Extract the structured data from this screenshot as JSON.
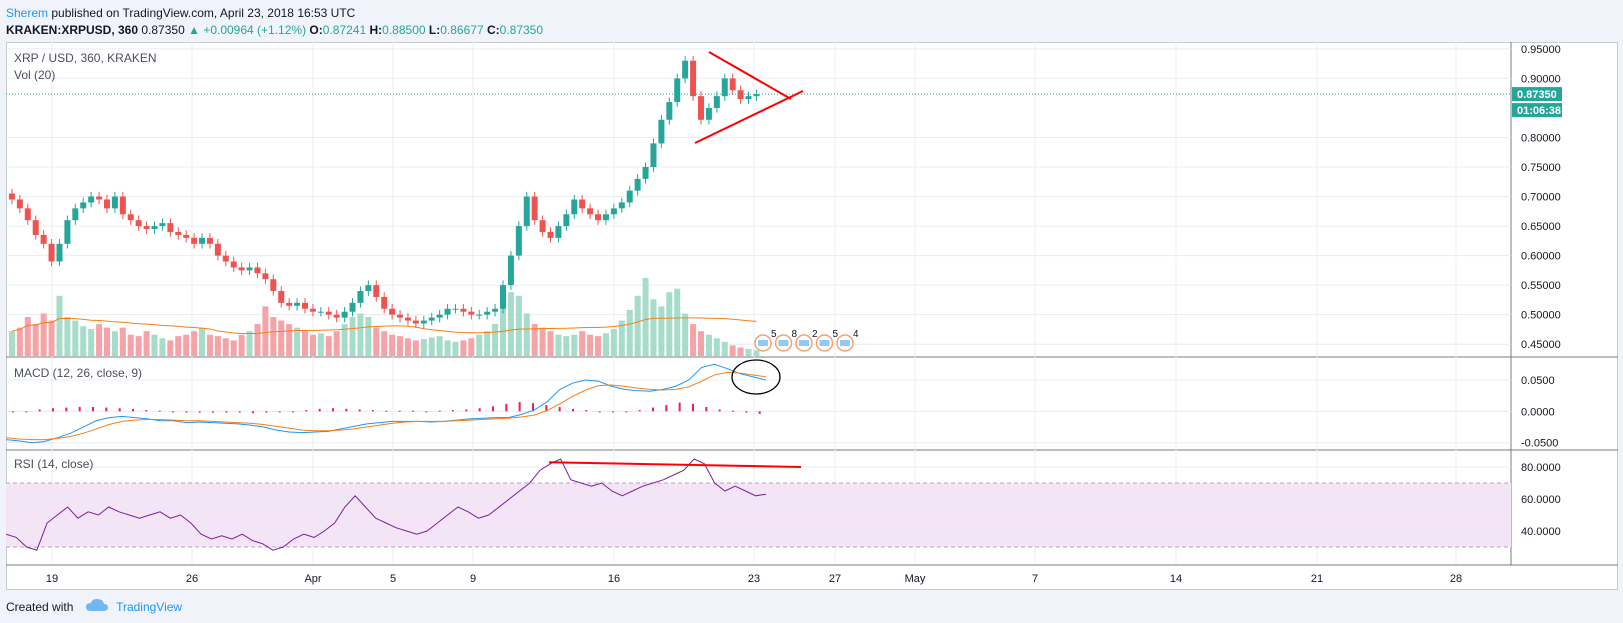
{
  "header": {
    "author": "Sherem",
    "text": "published on TradingView.com, April 23, 2018 16:53 UTC"
  },
  "ohlc": {
    "symbol": "KRAKEN:XRPUSD, 360",
    "last": "0.87350",
    "change": "▲ +0.00964 (+1.12%)",
    "o_label": "O:",
    "o": "0.87241",
    "h_label": "H:",
    "h": "0.88500",
    "l_label": "L:",
    "l": "0.86677",
    "c_label": "C:",
    "c": "0.87350"
  },
  "footer": {
    "created_with": "Created with",
    "brand": "TradingView"
  },
  "colors": {
    "up": "#26a69a",
    "down": "#ef5350",
    "up_vol": "#a6dcc9",
    "down_vol": "#f5a3a6",
    "vol_ma": "#f57f17",
    "macd": "#2196f3",
    "signal": "#f57f17",
    "hist": "#e91e63",
    "rsi": "#7b1fa2",
    "rsi_band": "#f3e5f5",
    "drawing_red": "#ff0000",
    "grid": "#e9ecf2",
    "price_line": "#26a69a"
  },
  "chart_data": [
    {
      "type": "candlestick",
      "title": "XRP / USD, 360, KRAKEN",
      "sub_label": "Vol (20)",
      "x_tick_labels": [
        "19",
        "26",
        "Apr",
        "5",
        "9",
        "16",
        "23",
        "27",
        "May",
        "7",
        "14",
        "21",
        "28"
      ],
      "y_tick_labels": [
        "0.95000",
        "0.90000",
        "0.80000",
        "0.75000",
        "0.70000",
        "0.65000",
        "0.60000",
        "0.55000",
        "0.50000",
        "0.45000"
      ],
      "ylim": [
        0.43,
        0.96
      ],
      "last_price_label": "0.87350",
      "countdown_label": "01:06:38",
      "closes": [
        0.695,
        0.68,
        0.66,
        0.635,
        0.62,
        0.59,
        0.62,
        0.66,
        0.68,
        0.69,
        0.7,
        0.695,
        0.68,
        0.7,
        0.67,
        0.66,
        0.65,
        0.645,
        0.65,
        0.655,
        0.64,
        0.635,
        0.63,
        0.62,
        0.63,
        0.62,
        0.6,
        0.59,
        0.58,
        0.575,
        0.58,
        0.57,
        0.56,
        0.54,
        0.52,
        0.515,
        0.52,
        0.51,
        0.505,
        0.505,
        0.5,
        0.495,
        0.505,
        0.52,
        0.54,
        0.55,
        0.53,
        0.51,
        0.5,
        0.495,
        0.49,
        0.485,
        0.49,
        0.495,
        0.5,
        0.51,
        0.51,
        0.505,
        0.5,
        0.5,
        0.505,
        0.51,
        0.55,
        0.6,
        0.65,
        0.7,
        0.66,
        0.64,
        0.63,
        0.65,
        0.67,
        0.695,
        0.68,
        0.67,
        0.66,
        0.67,
        0.68,
        0.69,
        0.71,
        0.73,
        0.75,
        0.79,
        0.83,
        0.86,
        0.9,
        0.93,
        0.87,
        0.83,
        0.85,
        0.87,
        0.9,
        0.88,
        0.865,
        0.87,
        0.8735
      ],
      "volumes": [
        35,
        40,
        55,
        45,
        60,
        50,
        85,
        55,
        50,
        42,
        38,
        45,
        40,
        35,
        40,
        30,
        28,
        35,
        30,
        25,
        22,
        28,
        30,
        35,
        40,
        30,
        28,
        25,
        22,
        30,
        35,
        45,
        70,
        55,
        50,
        45,
        40,
        35,
        30,
        32,
        28,
        35,
        45,
        55,
        60,
        55,
        40,
        35,
        30,
        28,
        25,
        22,
        24,
        26,
        28,
        22,
        20,
        22,
        25,
        30,
        35,
        45,
        70,
        90,
        85,
        60,
        45,
        40,
        35,
        30,
        28,
        30,
        35,
        30,
        28,
        32,
        38,
        50,
        65,
        85,
        110,
        80,
        70,
        90,
        95,
        60,
        45,
        35,
        30,
        25,
        20,
        15,
        12,
        10,
        8
      ],
      "event_badges": [
        "5",
        "8",
        "2",
        "5",
        "4"
      ]
    },
    {
      "type": "line",
      "title": "MACD (12, 26, close, 9)",
      "y_tick_labels": [
        "0.0500",
        "0.0000",
        "-0.0500"
      ],
      "ylim": [
        -0.06,
        0.085
      ],
      "series": [
        {
          "values": [
            -0.045,
            -0.047,
            -0.05,
            -0.048,
            -0.042,
            -0.035,
            -0.025,
            -0.015,
            -0.01,
            -0.008,
            -0.01,
            -0.012,
            -0.015,
            -0.015,
            -0.018,
            -0.017,
            -0.018,
            -0.019,
            -0.02,
            -0.022,
            -0.025,
            -0.03,
            -0.033,
            -0.034,
            -0.033,
            -0.032,
            -0.028,
            -0.024,
            -0.02,
            -0.018,
            -0.016,
            -0.016,
            -0.016,
            -0.017,
            -0.016,
            -0.014,
            -0.012,
            -0.011,
            -0.01,
            -0.01,
            -0.005,
            0.002,
            0.015,
            0.035,
            0.045,
            0.05,
            0.048,
            0.04,
            0.035,
            0.033,
            0.032,
            0.035,
            0.04,
            0.05,
            0.07,
            0.075,
            0.068,
            0.06,
            0.055,
            0.05
          ]
        },
        {
          "values": [
            -0.042,
            -0.044,
            -0.045,
            -0.045,
            -0.043,
            -0.04,
            -0.035,
            -0.028,
            -0.021,
            -0.016,
            -0.014,
            -0.013,
            -0.013,
            -0.014,
            -0.015,
            -0.015,
            -0.016,
            -0.017,
            -0.018,
            -0.019,
            -0.021,
            -0.024,
            -0.027,
            -0.03,
            -0.031,
            -0.031,
            -0.03,
            -0.028,
            -0.025,
            -0.022,
            -0.019,
            -0.017,
            -0.016,
            -0.016,
            -0.016,
            -0.015,
            -0.014,
            -0.013,
            -0.012,
            -0.011,
            -0.009,
            -0.006,
            0.001,
            0.012,
            0.024,
            0.034,
            0.041,
            0.042,
            0.04,
            0.037,
            0.035,
            0.034,
            0.035,
            0.039,
            0.048,
            0.058,
            0.062,
            0.061,
            0.058,
            0.055
          ]
        }
      ],
      "histogram": [
        0,
        0,
        0.003,
        0.005,
        0.006,
        0.007,
        0.007,
        0.006,
        0.005,
        0.004,
        0.002,
        0.001,
        -0.001,
        -0.002,
        -0.002,
        -0.002,
        -0.002,
        -0.002,
        -0.003,
        -0.002,
        -0.001,
        0,
        0.002,
        0.004,
        0.005,
        0.004,
        0.003,
        0.002,
        0.001,
        0.001,
        0.001,
        0,
        0.001,
        0.002,
        0.003,
        0.005,
        0.008,
        0.012,
        0.015,
        0.013,
        0.01,
        0.007,
        0.004,
        0.002,
        0,
        -0.001,
        -0.001,
        0.002,
        0.006,
        0.01,
        0.014,
        0.012,
        0.007,
        0.003,
        0.001,
        -0.002,
        -0.004
      ]
    },
    {
      "type": "line",
      "title": "RSI (14, close)",
      "y_tick_labels": [
        "80.0000",
        "60.0000",
        "40.0000"
      ],
      "ylim": [
        20,
        90
      ],
      "series": [
        {
          "values": [
            38,
            36,
            30,
            28,
            45,
            50,
            55,
            48,
            52,
            50,
            55,
            52,
            50,
            48,
            50,
            52,
            48,
            50,
            45,
            38,
            35,
            37,
            35,
            38,
            34,
            32,
            28,
            30,
            35,
            38,
            36,
            40,
            45,
            55,
            62,
            55,
            48,
            45,
            42,
            40,
            38,
            40,
            45,
            50,
            55,
            52,
            48,
            50,
            55,
            60,
            65,
            70,
            78,
            82,
            85,
            72,
            70,
            68,
            70,
            65,
            62,
            65,
            68,
            70,
            72,
            75,
            78,
            85,
            82,
            70,
            65,
            68,
            65,
            62,
            63
          ]
        }
      ]
    }
  ]
}
